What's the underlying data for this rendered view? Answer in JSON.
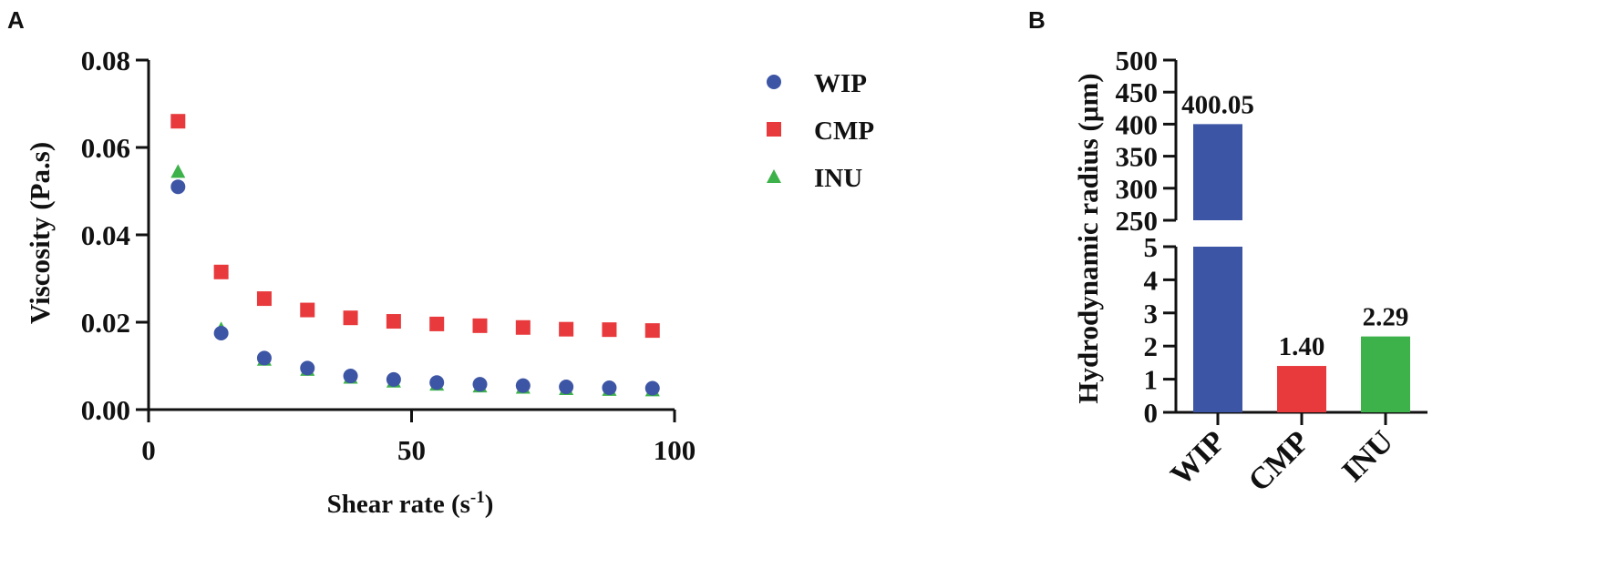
{
  "chart_data": [
    {
      "panel": "A",
      "type": "scatter",
      "xlabel": "Shear rate (s",
      "xlabel_superscript": "-1",
      "xlabel_suffix": ")",
      "ylabel": "Viscosity (Pa.s)",
      "xlim": [
        0,
        100
      ],
      "ylim": [
        0,
        0.08
      ],
      "xticks": [
        "0",
        "50",
        "100"
      ],
      "yticks": [
        "0.00",
        "0.02",
        "0.04",
        "0.06",
        "0.08"
      ],
      "legend_position": "right",
      "grid": false,
      "series": [
        {
          "name": "WIP",
          "marker": "circle",
          "color": "#3d55a5",
          "x": [
            5.6,
            13.8,
            22.0,
            30.2,
            38.4,
            46.6,
            54.8,
            63.0,
            71.2,
            79.4,
            87.6,
            95.8
          ],
          "y": [
            0.051,
            0.0175,
            0.0118,
            0.0095,
            0.0077,
            0.0069,
            0.0062,
            0.0058,
            0.0055,
            0.0052,
            0.005,
            0.0049
          ]
        },
        {
          "name": "CMP",
          "marker": "square",
          "color": "#e83a3d",
          "x": [
            5.6,
            13.8,
            22.0,
            30.2,
            38.4,
            46.6,
            54.8,
            63.0,
            71.2,
            79.4,
            87.6,
            95.8
          ],
          "y": [
            0.066,
            0.0315,
            0.0254,
            0.0228,
            0.021,
            0.0202,
            0.0196,
            0.0192,
            0.0188,
            0.0184,
            0.0183,
            0.0181
          ]
        },
        {
          "name": "INU",
          "marker": "triangle",
          "color": "#3db14a",
          "x": [
            5.6,
            13.8,
            22.0,
            30.2,
            38.4,
            46.6,
            54.8,
            63.0,
            71.2,
            79.4,
            87.6,
            95.8
          ],
          "y": [
            0.0545,
            0.0185,
            0.0115,
            0.0092,
            0.0074,
            0.0065,
            0.0058,
            0.0054,
            0.0051,
            0.0048,
            0.0046,
            0.0045
          ]
        }
      ]
    },
    {
      "panel": "B",
      "type": "bar",
      "ylabel": "Hydrodynamic radius (μm)",
      "categories": [
        "WIP",
        "CMP",
        "INU"
      ],
      "values": [
        400.05,
        1.4,
        2.29
      ],
      "value_labels": [
        "400.05",
        "1.40",
        "2.29"
      ],
      "colors": [
        "#3d55a5",
        "#e83a3d",
        "#3db14a"
      ],
      "broken_axis": true,
      "ylim_lower": [
        0,
        5
      ],
      "ylim_upper": [
        250,
        500
      ],
      "yticks_lower": [
        "0",
        "1",
        "2",
        "3",
        "4",
        "5"
      ],
      "yticks_upper": [
        "250",
        "300",
        "350",
        "400",
        "450",
        "500"
      ],
      "grid": false
    }
  ]
}
